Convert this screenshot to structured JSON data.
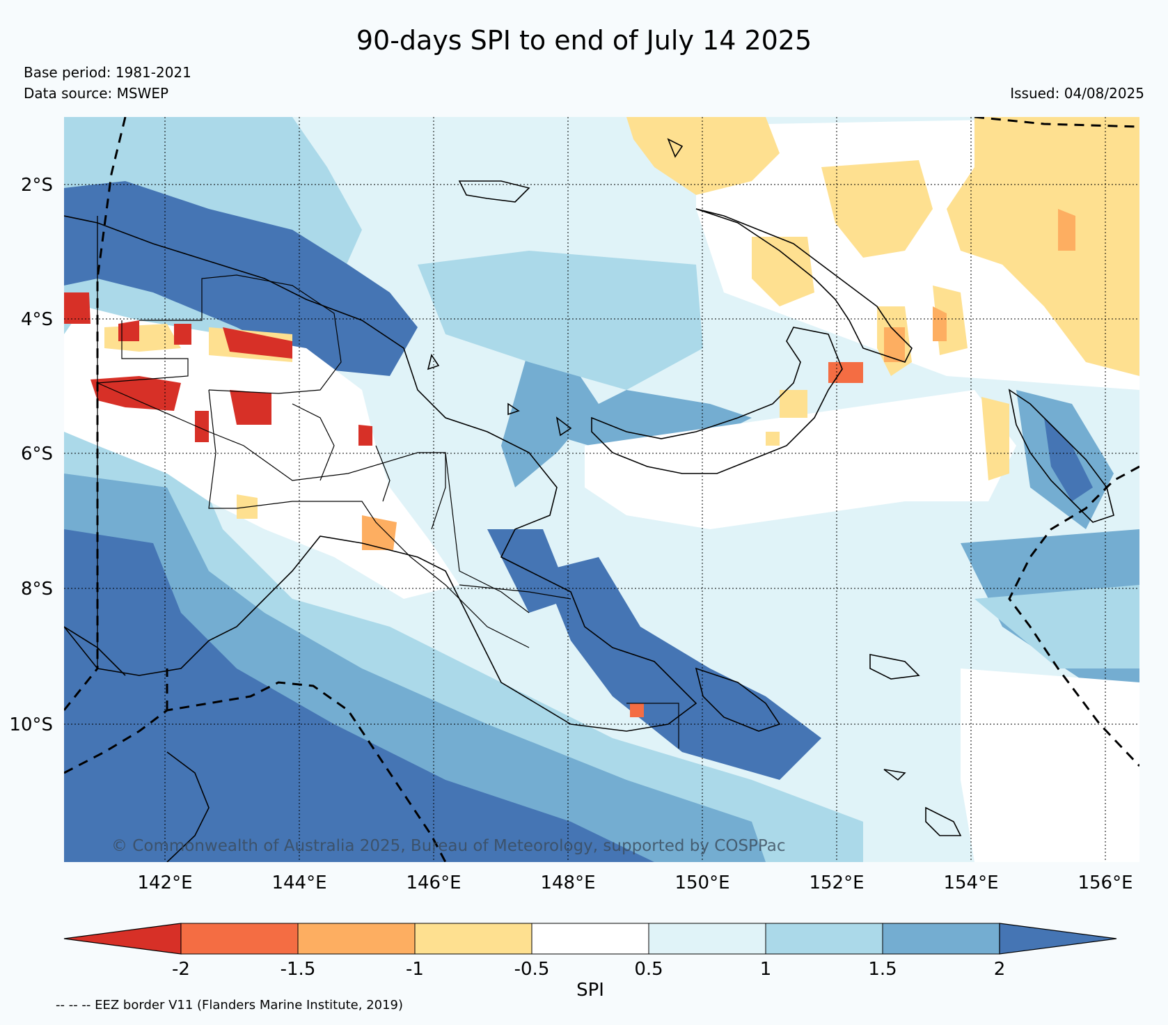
{
  "header": {
    "title": "90-days SPI to end of July 14 2025",
    "base_period": "Base period: 1981-2021",
    "data_source": "Data source: MSWEP",
    "issued": "Issued: 04/08/2025"
  },
  "map": {
    "lat_labels": [
      "2°S",
      "4°S",
      "6°S",
      "8°S",
      "10°S"
    ],
    "lon_labels": [
      "142°E",
      "144°E",
      "146°E",
      "148°E",
      "150°E",
      "152°E",
      "154°E",
      "156°E"
    ],
    "copyright": "© Commonwealth of Australia 2025, Bureau of Meteorology, supported by COSPPac"
  },
  "colorbar": {
    "label": "SPI",
    "tick_labels": [
      "-2",
      "-1.5",
      "-1",
      "-0.5",
      "0.5",
      "1",
      "1.5",
      "2"
    ],
    "colors": [
      "#d73027",
      "#f46d43",
      "#fdae61",
      "#fee090",
      "#ffffff",
      "#e0f3f8",
      "#abd9e9",
      "#74add1",
      "#4575b4"
    ]
  },
  "legend": {
    "eez_note": "-- -- -- EEZ border V11 (Flanders Marine Institute, 2019)"
  }
}
